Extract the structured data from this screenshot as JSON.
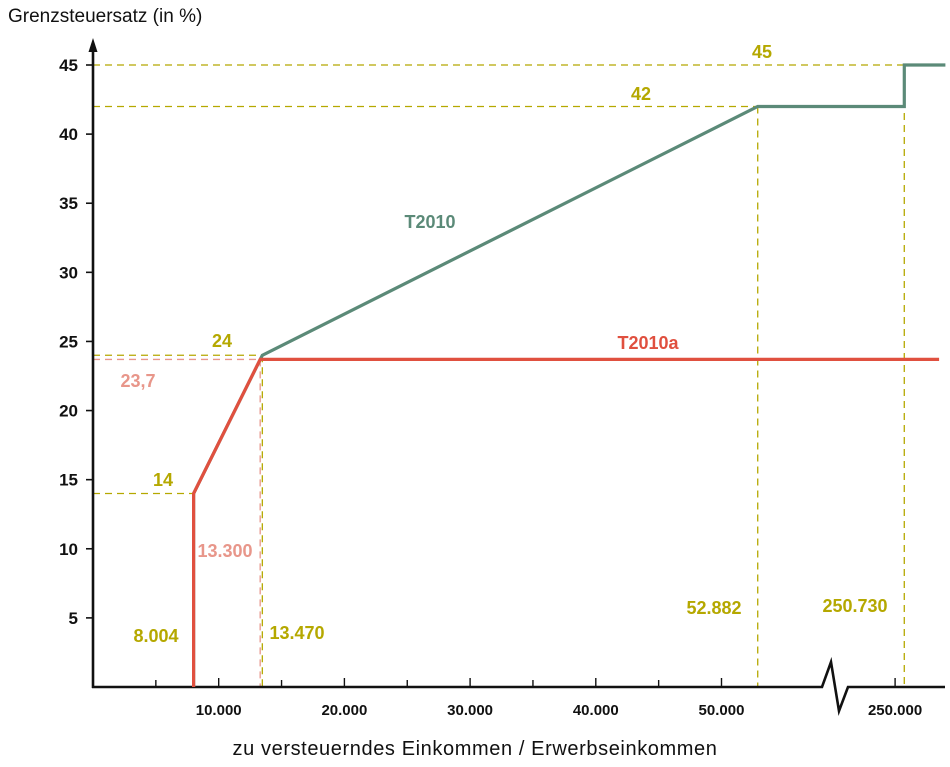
{
  "chart_data": {
    "type": "line",
    "ylabel": "Grenzsteuersatz (in %)",
    "xlabel": "zu versteuerndes Einkommen / Erwerbseinkommen",
    "ylim": [
      0,
      45
    ],
    "y_ticks": [
      "5",
      "10",
      "15",
      "20",
      "25",
      "30",
      "35",
      "40",
      "45"
    ],
    "x_ticks": [
      "10.000",
      "20.000",
      "30.000",
      "40.000",
      "50.000",
      "250.000"
    ],
    "axis_break": "between 50.000 and 250.000",
    "grid": false,
    "colors": {
      "T2010": "#5b8a78",
      "T2010a": "#e0503f",
      "annotation": "#b5a800",
      "annotation_light": "#e8968a",
      "axis": "#111111"
    },
    "series": [
      {
        "name": "T2010",
        "points": [
          {
            "x": 8004,
            "y": 0
          },
          {
            "x": 8004,
            "y": 14
          },
          {
            "x": 13470,
            "y": 24
          },
          {
            "x": 52882,
            "y": 42
          },
          {
            "x": 250730,
            "y": 42
          },
          {
            "x": 250730,
            "y": 45
          },
          {
            "x": 254000,
            "y": 45
          }
        ]
      },
      {
        "name": "T2010a",
        "points": [
          {
            "x": 8004,
            "y": 0
          },
          {
            "x": 8004,
            "y": 14
          },
          {
            "x": 13300,
            "y": 23.7
          },
          {
            "x": 253500,
            "y": 23.7
          }
        ]
      }
    ],
    "annotations": {
      "y_levels": [
        {
          "label": "45",
          "y": 45
        },
        {
          "label": "42",
          "y": 42
        },
        {
          "label": "24",
          "y": 24
        },
        {
          "label": "23,7",
          "y": 23.7
        },
        {
          "label": "14",
          "y": 14
        }
      ],
      "x_values": [
        {
          "label": "8.004",
          "x": 8004
        },
        {
          "label": "13.300",
          "x": 13300
        },
        {
          "label": "13.470",
          "x": 13470
        },
        {
          "label": "52.882",
          "x": 52882
        },
        {
          "label": "250.730",
          "x": 250730
        }
      ]
    }
  }
}
